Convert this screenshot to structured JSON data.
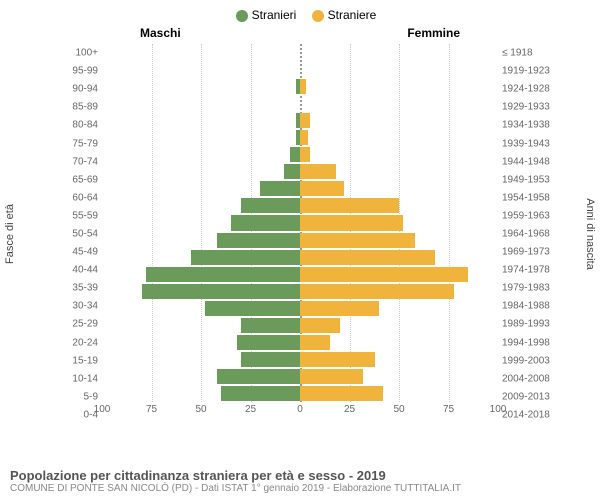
{
  "legend": {
    "male": {
      "label": "Stranieri",
      "color": "#6a9b5b"
    },
    "female": {
      "label": "Straniere",
      "color": "#f0b33c"
    }
  },
  "headers": {
    "male": "Maschi",
    "female": "Femmine"
  },
  "axes": {
    "left_title": "Fasce di età",
    "right_title": "Anni di nascita",
    "xmax": 100,
    "xticks": [
      100,
      75,
      50,
      25,
      0,
      25,
      50,
      75,
      100
    ]
  },
  "rows": [
    {
      "age": "100+",
      "birth": "≤ 1918",
      "m": 0,
      "f": 0
    },
    {
      "age": "95-99",
      "birth": "1919-1923",
      "m": 0,
      "f": 0
    },
    {
      "age": "90-94",
      "birth": "1924-1928",
      "m": 2,
      "f": 3
    },
    {
      "age": "85-89",
      "birth": "1929-1933",
      "m": 0,
      "f": 0
    },
    {
      "age": "80-84",
      "birth": "1934-1938",
      "m": 2,
      "f": 5
    },
    {
      "age": "75-79",
      "birth": "1939-1943",
      "m": 2,
      "f": 4
    },
    {
      "age": "70-74",
      "birth": "1944-1948",
      "m": 5,
      "f": 5
    },
    {
      "age": "65-69",
      "birth": "1949-1953",
      "m": 8,
      "f": 18
    },
    {
      "age": "60-64",
      "birth": "1954-1958",
      "m": 20,
      "f": 22
    },
    {
      "age": "55-59",
      "birth": "1959-1963",
      "m": 30,
      "f": 50
    },
    {
      "age": "50-54",
      "birth": "1964-1968",
      "m": 35,
      "f": 52
    },
    {
      "age": "45-49",
      "birth": "1969-1973",
      "m": 42,
      "f": 58
    },
    {
      "age": "40-44",
      "birth": "1974-1978",
      "m": 55,
      "f": 68
    },
    {
      "age": "35-39",
      "birth": "1979-1983",
      "m": 78,
      "f": 85
    },
    {
      "age": "30-34",
      "birth": "1984-1988",
      "m": 80,
      "f": 78
    },
    {
      "age": "25-29",
      "birth": "1989-1993",
      "m": 48,
      "f": 40
    },
    {
      "age": "20-24",
      "birth": "1994-1998",
      "m": 30,
      "f": 20
    },
    {
      "age": "15-19",
      "birth": "1999-2003",
      "m": 32,
      "f": 15
    },
    {
      "age": "10-14",
      "birth": "2004-2008",
      "m": 30,
      "f": 38
    },
    {
      "age": "5-9",
      "birth": "2009-2013",
      "m": 42,
      "f": 32
    },
    {
      "age": "0-4",
      "birth": "2014-2018",
      "m": 40,
      "f": 42
    }
  ],
  "grid_color": "#cccccc",
  "centerline_color": "#999999",
  "footer": {
    "title": "Popolazione per cittadinanza straniera per età e sesso - 2019",
    "sub": "COMUNE DI PONTE SAN NICOLÒ (PD) - Dati ISTAT 1° gennaio 2019 - Elaborazione TUTTITALIA.IT"
  },
  "chart": {
    "type": "population-pyramid",
    "row_height_ratio": 0.0476,
    "bar_inset": 1,
    "label_fontsize": 10
  }
}
